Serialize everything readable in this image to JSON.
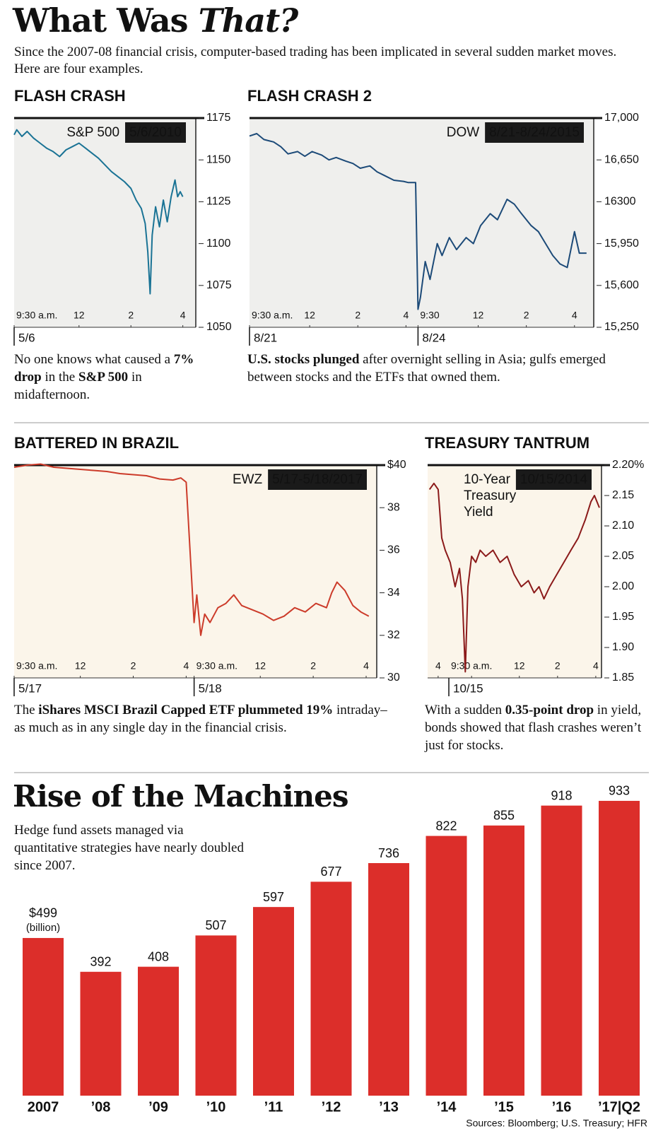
{
  "title": [
    {
      "text": "What Was ",
      "italic": false
    },
    {
      "text": "That?",
      "italic": true
    }
  ],
  "intro": "Since the 2007-08 financial crisis, computer-based trading has been implicated in several sudden market moves. Here are four examples.",
  "chart_data": [
    {
      "type": "line",
      "title": "FLASH CRASH",
      "label": "S&P 500",
      "date": "5/6/2010",
      "color": "#1a7395",
      "background": "#efefed",
      "x": [
        0,
        0.1,
        0.3,
        0.5,
        0.75,
        1,
        1.25,
        1.5,
        1.75,
        2,
        2.25,
        2.5,
        2.75,
        3,
        3.25,
        3.5,
        3.75,
        4,
        4.25,
        4.5,
        4.7,
        4.9,
        5.05,
        5.15,
        5.24,
        5.32,
        5.45,
        5.6,
        5.75,
        5.9,
        6.05,
        6.2,
        6.3,
        6.4,
        6.5
      ],
      "values": [
        1165,
        1168,
        1164,
        1167,
        1163,
        1160,
        1157,
        1155,
        1152,
        1156,
        1158,
        1160,
        1157,
        1154,
        1151,
        1147,
        1143,
        1140,
        1137,
        1133,
        1126,
        1121,
        1112,
        1095,
        1070,
        1105,
        1122,
        1110,
        1126,
        1113,
        1128,
        1138,
        1128,
        1131,
        1128
      ],
      "xlim": [
        0,
        7
      ],
      "xticks": [
        {
          "value": 0,
          "label": "9:30 a.m."
        },
        {
          "value": 2.5,
          "label": "12"
        },
        {
          "value": 4.5,
          "label": "2"
        },
        {
          "value": 6.5,
          "label": "4"
        }
      ],
      "day_ticks": [
        {
          "value": 0,
          "label": "5/6"
        }
      ],
      "ylim": [
        1050,
        1175
      ],
      "yticks": [
        1050,
        1075,
        1100,
        1125,
        1150,
        1175
      ],
      "caption": [
        {
          "text": "No one knows what caused a ",
          "bold": false
        },
        {
          "text": "7% drop",
          "bold": true
        },
        {
          "text": " in the ",
          "bold": false
        },
        {
          "text": "S&P 500",
          "bold": true
        },
        {
          "text": " in midafternoon.",
          "bold": false
        }
      ]
    },
    {
      "type": "line",
      "title": "FLASH CRASH 2",
      "label": "DOW",
      "date": "8/21-8/24/2015",
      "color": "#1c4a78",
      "background": "#efefed",
      "x": [
        0,
        0.3,
        0.6,
        1,
        1.3,
        1.6,
        2,
        2.3,
        2.6,
        3,
        3.3,
        3.6,
        4,
        4.3,
        4.6,
        5,
        5.3,
        5.6,
        6,
        6.4,
        6.6,
        6.9,
        7,
        7.1,
        7.3,
        7.5,
        7.8,
        8,
        8.3,
        8.6,
        9,
        9.3,
        9.6,
        10,
        10.3,
        10.7,
        11,
        11.3,
        11.7,
        12,
        12.3,
        12.6,
        12.9,
        13.2,
        13.5,
        13.7,
        14
      ],
      "values": [
        16850,
        16870,
        16820,
        16800,
        16760,
        16700,
        16720,
        16680,
        16720,
        16690,
        16650,
        16670,
        16640,
        16620,
        16580,
        16600,
        16550,
        16520,
        16480,
        16470,
        16460,
        16460,
        15400,
        15500,
        15800,
        15650,
        15950,
        15850,
        16000,
        15900,
        16000,
        15950,
        16100,
        16200,
        16150,
        16320,
        16280,
        16200,
        16100,
        16050,
        15950,
        15850,
        15780,
        15750,
        16050,
        15870,
        15870
      ],
      "xlim": [
        0,
        14.3
      ],
      "xticks": [
        {
          "value": 0,
          "label": "9:30 a.m."
        },
        {
          "value": 2.5,
          "label": "12"
        },
        {
          "value": 4.5,
          "label": "2"
        },
        {
          "value": 6.5,
          "label": "4"
        },
        {
          "value": 7,
          "label": "9:30"
        },
        {
          "value": 9.5,
          "label": "12"
        },
        {
          "value": 11.5,
          "label": "2"
        },
        {
          "value": 13.5,
          "label": "4"
        }
      ],
      "day_ticks": [
        {
          "value": 0,
          "label": "8/21"
        },
        {
          "value": 7,
          "label": "8/24"
        }
      ],
      "ylim": [
        15250,
        17000
      ],
      "yticks": [
        {
          "value": 15250,
          "label": "15,250"
        },
        {
          "value": 15600,
          "label": "15,600"
        },
        {
          "value": 15950,
          "label": "15,950"
        },
        16300,
        {
          "value": 16650,
          "label": "16,650"
        },
        {
          "value": 17000,
          "label": "17,000"
        }
      ],
      "caption": [
        {
          "text": "U.S. stocks plunged",
          "bold": true
        },
        {
          "text": " after overnight selling in Asia; gulfs emerged between stocks and the ETFs that owned them.",
          "bold": false
        }
      ]
    },
    {
      "type": "line",
      "title": "BATTERED IN BRAZIL",
      "label": "EWZ",
      "date": "5/17-5/18/2017",
      "color": "#cc3b2a",
      "background": "#fbf5ea",
      "x": [
        0,
        0.5,
        1,
        1.5,
        2,
        2.5,
        3,
        3.5,
        4,
        4.5,
        5,
        5.5,
        6,
        6.3,
        6.5,
        6.8,
        6.9,
        7.05,
        7.2,
        7.4,
        7.7,
        8,
        8.3,
        8.6,
        9,
        9.4,
        9.8,
        10.2,
        10.6,
        11,
        11.4,
        11.8,
        12,
        12.2,
        12.5,
        12.8,
        13.1,
        13.4
      ],
      "values": [
        39.9,
        40.0,
        40.05,
        39.9,
        39.85,
        39.8,
        39.75,
        39.7,
        39.6,
        39.55,
        39.5,
        39.35,
        39.3,
        39.4,
        39.2,
        32.6,
        33.9,
        32.0,
        33.0,
        32.6,
        33.3,
        33.5,
        33.9,
        33.4,
        33.2,
        33.0,
        32.7,
        32.9,
        33.3,
        33.1,
        33.5,
        33.3,
        34.0,
        34.5,
        34.1,
        33.4,
        33.1,
        32.9
      ],
      "xlim": [
        0,
        13.7
      ],
      "xticks": [
        {
          "value": 0,
          "label": "9:30 a.m."
        },
        {
          "value": 2.5,
          "label": "12"
        },
        {
          "value": 4.5,
          "label": "2"
        },
        {
          "value": 6.5,
          "label": "4"
        },
        {
          "value": 6.8,
          "label": "9:30 a.m."
        },
        {
          "value": 9.3,
          "label": "12"
        },
        {
          "value": 11.3,
          "label": "2"
        },
        {
          "value": 13.3,
          "label": "4"
        }
      ],
      "day_ticks": [
        {
          "value": 0,
          "label": "5/17"
        },
        {
          "value": 6.8,
          "label": "5/18"
        }
      ],
      "ylim": [
        30,
        40
      ],
      "yticks": [
        30,
        32,
        34,
        36,
        38,
        {
          "value": 40,
          "label": "$40"
        }
      ],
      "caption": [
        {
          "text": "The ",
          "bold": false
        },
        {
          "text": "iShares MSCI Brazil Capped ETF plummeted 19%",
          "bold": true
        },
        {
          "text": " intraday–as much as in any single day in the financial crisis.",
          "bold": false
        }
      ]
    },
    {
      "type": "line",
      "title": "TREASURY TANTRUM",
      "label": [
        "10-Year",
        "Treasury",
        "Yield"
      ],
      "date": "10/15/2014",
      "color": "#8b1a1a",
      "background": "#fbf5ea",
      "x": [
        -2.2,
        -1.97,
        -1.75,
        -1.56,
        -1.38,
        -1.12,
        -0.86,
        -0.63,
        -0.48,
        -0.33,
        -0.19,
        0,
        0.22,
        0.45,
        0.74,
        1.12,
        1.49,
        1.86,
        2.23,
        2.6,
        2.97,
        3.27,
        3.53,
        3.79,
        4.09,
        4.46,
        4.83,
        5.2,
        5.58,
        5.95,
        6.25,
        6.43,
        6.69
      ],
      "values": [
        2.16,
        2.17,
        2.16,
        2.08,
        2.06,
        2.04,
        2.0,
        2.03,
        1.98,
        1.86,
        2.0,
        2.05,
        2.04,
        2.06,
        2.05,
        2.06,
        2.04,
        2.05,
        2.02,
        2.0,
        2.01,
        1.99,
        2.0,
        1.98,
        2.0,
        2.02,
        2.04,
        2.06,
        2.08,
        2.11,
        2.14,
        2.15,
        2.13
      ],
      "xlim": [
        -2.3,
        6.8
      ],
      "xticks": [
        {
          "value": -1.75,
          "label": "4"
        },
        {
          "value": 0,
          "label": "9:30 a.m."
        },
        {
          "value": 2.5,
          "label": "12"
        },
        {
          "value": 4.5,
          "label": "2"
        },
        {
          "value": 6.5,
          "label": "4"
        }
      ],
      "day_ticks": [
        {
          "value": -1.19,
          "label": "10/15"
        }
      ],
      "ylim": [
        1.85,
        2.2
      ],
      "yticks": [
        1.85,
        {
          "value": 1.9,
          "label": "1.90"
        },
        1.95,
        {
          "value": 2,
          "label": "2.00"
        },
        2.05,
        {
          "value": 2.1,
          "label": "2.10"
        },
        2.15,
        {
          "value": 2.2,
          "label": "2.20%"
        }
      ],
      "caption": [
        {
          "text": "With a sudden ",
          "bold": false
        },
        {
          "text": "0.35-point drop",
          "bold": true
        },
        {
          "text": " in yield, bonds showed that flash crashes weren’t just for stocks.",
          "bold": false
        }
      ]
    },
    {
      "type": "bar",
      "title": "Rise of the Machines",
      "subtitle": "Hedge fund assets managed via quantitative strategies have nearly doubled since 2007.",
      "categories": [
        "2007",
        "’08",
        "’09",
        "’10",
        "’11",
        "’12",
        "’13",
        "’14",
        "’15",
        "’16",
        "’17|Q2"
      ],
      "values": [
        499,
        392,
        408,
        507,
        597,
        677,
        736,
        822,
        855,
        918,
        933
      ],
      "value_labels": [
        "$499",
        "392",
        "408",
        "507",
        "597",
        "677",
        "736",
        "822",
        "855",
        "918",
        "933"
      ],
      "annotation": "(billion)",
      "color": "#dc2e2a"
    }
  ],
  "source": "Sources: Bloomberg; U.S. Treasury; HFR"
}
